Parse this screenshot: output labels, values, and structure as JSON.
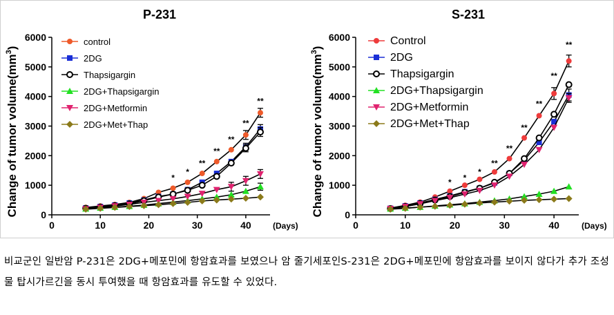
{
  "chart_data": [
    {
      "type": "line",
      "title": "P-231",
      "ylabel": "Change of tumor volume(mm",
      "ylabel_sup": "3",
      "ylabel_close": ")",
      "xlabel": "(Days)",
      "xlim": [
        0,
        45
      ],
      "ylim": [
        0,
        6000
      ],
      "x_ticks": [
        0,
        10,
        20,
        30,
        40
      ],
      "y_ticks": [
        0,
        1000,
        2000,
        3000,
        4000,
        5000,
        6000
      ],
      "legend_position": "top-left",
      "x": [
        7,
        10,
        13,
        16,
        19,
        22,
        25,
        28,
        31,
        34,
        37,
        40,
        43
      ],
      "series": [
        {
          "name": "control",
          "color": "#ee5a2a",
          "marker": "circle",
          "values": [
            250,
            300,
            350,
            420,
            550,
            760,
            900,
            1100,
            1400,
            1800,
            2200,
            2700,
            3450
          ],
          "err": [
            0,
            0,
            0,
            0,
            0,
            0,
            0,
            0,
            0,
            0,
            0,
            150,
            150
          ]
        },
        {
          "name": "2DG",
          "color": "#1a2fd6",
          "marker": "square",
          "values": [
            230,
            280,
            330,
            400,
            500,
            620,
            700,
            850,
            1100,
            1400,
            1800,
            2300,
            2900
          ],
          "err": [
            0,
            0,
            0,
            0,
            0,
            0,
            0,
            0,
            0,
            0,
            0,
            120,
            150
          ]
        },
        {
          "name": "Thapsigargin",
          "color": "#000000",
          "marker": "open-circle",
          "values": [
            220,
            260,
            310,
            370,
            480,
            600,
            700,
            830,
            1000,
            1300,
            1750,
            2250,
            2800
          ],
          "err": [
            0,
            0,
            0,
            0,
            0,
            0,
            0,
            0,
            0,
            0,
            0,
            120,
            150
          ]
        },
        {
          "name": "2DG+Thapsigargin",
          "color": "#22e022",
          "marker": "triangle-up",
          "values": [
            200,
            230,
            260,
            290,
            330,
            380,
            430,
            480,
            540,
            600,
            680,
            800,
            950
          ],
          "err": [
            0,
            0,
            0,
            0,
            0,
            0,
            0,
            0,
            0,
            0,
            0,
            0,
            120
          ]
        },
        {
          "name": "2DG+Metformin",
          "color": "#e0236f",
          "marker": "triangle-down",
          "values": [
            200,
            250,
            300,
            350,
            420,
            480,
            540,
            620,
            720,
            850,
            950,
            1150,
            1380
          ],
          "err": [
            0,
            0,
            0,
            0,
            0,
            0,
            0,
            0,
            0,
            0,
            150,
            150,
            150
          ]
        },
        {
          "name": "2DG+Met+Thap",
          "color": "#8b7a1a",
          "marker": "diamond",
          "values": [
            190,
            220,
            250,
            280,
            310,
            340,
            380,
            420,
            470,
            500,
            530,
            560,
            600
          ],
          "err": [
            0,
            0,
            0,
            0,
            0,
            0,
            0,
            0,
            0,
            0,
            0,
            0,
            0
          ]
        }
      ],
      "annotations": [
        {
          "x": 25,
          "y": 1150,
          "text": "*"
        },
        {
          "x": 28,
          "y": 1350,
          "text": "*"
        },
        {
          "x": 31,
          "y": 1650,
          "text": "**"
        },
        {
          "x": 34,
          "y": 2050,
          "text": "**"
        },
        {
          "x": 37,
          "y": 2450,
          "text": "**"
        },
        {
          "x": 40,
          "y": 3000,
          "text": "**"
        },
        {
          "x": 43,
          "y": 3750,
          "text": "**"
        }
      ]
    },
    {
      "type": "line",
      "title": "S-231",
      "ylabel": "Change of tumor volume(mm",
      "ylabel_sup": "3",
      "ylabel_close": ")",
      "xlabel": "(Days)",
      "xlim": [
        0,
        45
      ],
      "ylim": [
        0,
        6000
      ],
      "x_ticks": [
        0,
        10,
        20,
        30,
        40
      ],
      "y_ticks": [
        0,
        1000,
        2000,
        3000,
        4000,
        5000,
        6000
      ],
      "legend_position": "top-left",
      "x": [
        7,
        10,
        13,
        16,
        19,
        22,
        25,
        28,
        31,
        34,
        37,
        40,
        43
      ],
      "series": [
        {
          "name": "Control",
          "color": "#ee3b3b",
          "marker": "circle",
          "values": [
            230,
            320,
            430,
            600,
            800,
            1000,
            1200,
            1450,
            1900,
            2600,
            3350,
            4100,
            5200
          ],
          "err": [
            0,
            0,
            0,
            0,
            0,
            0,
            0,
            0,
            0,
            0,
            0,
            200,
            200
          ]
        },
        {
          "name": "2DG",
          "color": "#1a2fd6",
          "marker": "square",
          "values": [
            220,
            300,
            400,
            520,
            640,
            780,
            900,
            1080,
            1400,
            1850,
            2450,
            3150,
            4050
          ],
          "err": [
            0,
            0,
            0,
            0,
            0,
            0,
            0,
            0,
            0,
            0,
            0,
            0,
            200
          ]
        },
        {
          "name": "Thapsigargin",
          "color": "#000000",
          "marker": "open-circle",
          "values": [
            210,
            280,
            380,
            500,
            620,
            760,
            900,
            1100,
            1400,
            1900,
            2600,
            3400,
            4400
          ],
          "err": [
            0,
            0,
            0,
            0,
            0,
            0,
            0,
            0,
            0,
            0,
            0,
            0,
            0
          ]
        },
        {
          "name": "2DG+Thapsigargin",
          "color": "#22e022",
          "marker": "triangle-up",
          "values": [
            200,
            230,
            260,
            300,
            340,
            380,
            430,
            480,
            540,
            620,
            700,
            800,
            950
          ],
          "err": [
            0,
            0,
            0,
            0,
            0,
            0,
            0,
            0,
            0,
            0,
            0,
            0,
            0
          ]
        },
        {
          "name": "2DG+Metformin",
          "color": "#e0236f",
          "marker": "triangle-down",
          "values": [
            210,
            280,
            370,
            480,
            580,
            700,
            820,
            1000,
            1300,
            1700,
            2200,
            2950,
            3950
          ],
          "err": [
            0,
            0,
            0,
            0,
            0,
            0,
            0,
            0,
            0,
            0,
            0,
            0,
            150
          ]
        },
        {
          "name": "2DG+Met+Thap",
          "color": "#8b7a1a",
          "marker": "diamond",
          "values": [
            190,
            220,
            260,
            290,
            320,
            360,
            400,
            430,
            460,
            490,
            510,
            530,
            550
          ],
          "err": [
            0,
            0,
            0,
            0,
            0,
            0,
            0,
            0,
            0,
            0,
            0,
            0,
            0
          ]
        }
      ],
      "annotations": [
        {
          "x": 19,
          "y": 1000,
          "text": "*"
        },
        {
          "x": 22,
          "y": 1150,
          "text": "*"
        },
        {
          "x": 25,
          "y": 1350,
          "text": "*"
        },
        {
          "x": 28,
          "y": 1650,
          "text": "**"
        },
        {
          "x": 31,
          "y": 2150,
          "text": "**"
        },
        {
          "x": 34,
          "y": 2850,
          "text": "**"
        },
        {
          "x": 37,
          "y": 3650,
          "text": "**"
        },
        {
          "x": 40,
          "y": 4600,
          "text": "**"
        },
        {
          "x": 43,
          "y": 5650,
          "text": "**"
        }
      ]
    }
  ],
  "caption": "비교군인 일반암 P-231은 2DG+메포민에 항암효과를 보였으나 암 줄기세포인S-231은 2DG+메포민에 항암효과를 보이지 않다가 추가 조성물 탑시가르긴을 동시 투여했을 때 항암효과를 유도할 수 있었다."
}
